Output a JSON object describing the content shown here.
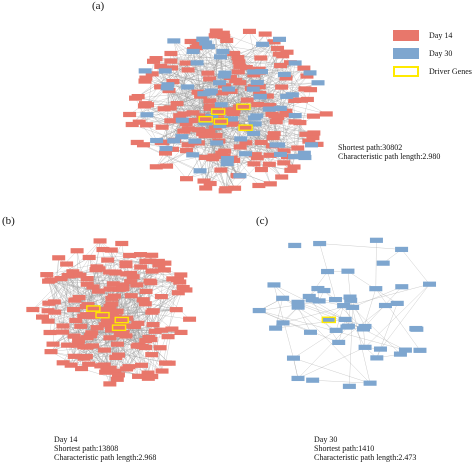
{
  "colors": {
    "day14": "#e8776b",
    "day30": "#7ea6cf",
    "driver": "#ffea00",
    "edge": "#9a9a9a"
  },
  "legend": {
    "items": [
      {
        "label": "Day 14",
        "kind": "day14"
      },
      {
        "label": "Day 30",
        "kind": "day30"
      },
      {
        "label": "Driver Genes",
        "kind": "driver"
      }
    ]
  },
  "panels": {
    "a": {
      "label": "(a)",
      "stats": [
        "",
        "Shortest path:30802",
        "Characteristic path length:2.980"
      ],
      "network": {
        "day14": 185,
        "day30": 70,
        "driver": 5,
        "edges": 560
      }
    },
    "b": {
      "label": "(b)",
      "stats": [
        "Day 14",
        "Shortest path:13808",
        "Characteristic path length:2.968"
      ],
      "network": {
        "day14": 175,
        "day30": 0,
        "driver": 4,
        "edges": 480
      }
    },
    "c": {
      "label": "(c)",
      "stats": [
        "Day 30",
        "Shortest path:1410",
        "Characteristic path length:2.473"
      ],
      "network": {
        "day14": 0,
        "day30": 50,
        "driver": 1,
        "edges": 70
      }
    }
  }
}
